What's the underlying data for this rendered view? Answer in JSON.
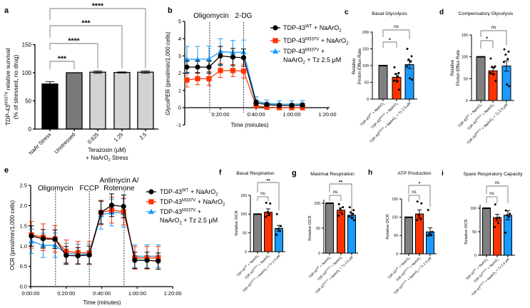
{
  "colors": {
    "wt": "#000000",
    "m337v": "#ff3300",
    "tz": "#1a9bff",
    "reference_bar": "#808080",
    "axis": "#000000"
  },
  "chart_data": [
    {
      "panel": "a",
      "type": "bar",
      "title": "",
      "ylabel": [
        "TDP-43^{M337V} relative survival",
        "(% of stressed, no drug)"
      ],
      "categories": [
        "NaAr Stress",
        "Unstressed",
        "0.625",
        "1.25",
        "2.5"
      ],
      "group_label": [
        "Terazosin (μM)",
        "+ NaArO_{2} Stress"
      ],
      "values": [
        80,
        100,
        101,
        100.5,
        101
      ],
      "errors": [
        4,
        0,
        2,
        1,
        2
      ],
      "points": [
        [],
        [],
        [],
        [],
        []
      ],
      "bar_colors": [
        "#000000",
        "#7a7a7a",
        "#d3d3d3",
        "#d3d3d3",
        "#d3d3d3"
      ],
      "ylim": [
        0,
        150
      ],
      "yticks": [
        0,
        50,
        100,
        150
      ],
      "significance": [
        {
          "from": 0,
          "to": 1,
          "label": "***"
        },
        {
          "from": 0,
          "to": 2,
          "label": "****"
        },
        {
          "from": 0,
          "to": 3,
          "label": "***"
        },
        {
          "from": 0,
          "to": 4,
          "label": "****"
        }
      ]
    },
    {
      "panel": "b",
      "type": "line",
      "title": "",
      "xlabel": "Time (minutes)",
      "ylabel": "GlycoPER (pmol/min/1,000 cells)",
      "ylim": [
        -1,
        5
      ],
      "yticks": [
        -1,
        0,
        1,
        2,
        3,
        4,
        5
      ],
      "xlim_minutes": [
        0,
        80
      ],
      "xticks": [
        {
          "minutes": 20,
          "label": "0:20:00"
        },
        {
          "minutes": 40,
          "label": "0:40:00"
        },
        {
          "minutes": 60,
          "label": "1:00:00"
        },
        {
          "minutes": 80,
          "label": "1:20:00"
        }
      ],
      "injections": [
        {
          "minutes": 14,
          "label": [
            "Oligomycin"
          ]
        },
        {
          "minutes": 33,
          "label": [
            "2-DG"
          ]
        }
      ],
      "legend_position": "top-right",
      "x_minutes": [
        1.2,
        7.2,
        13.6,
        20,
        27,
        33,
        40,
        46,
        53,
        60,
        66
      ],
      "series": [
        {
          "name": [
            "TDP-43^{WT} + NaArO_{2}"
          ],
          "color": "#000000",
          "marker": "circle",
          "values": [
            2.35,
            2.35,
            2.35,
            3.0,
            2.93,
            2.9,
            0.28,
            0.18,
            0.13,
            0.13,
            0.15
          ],
          "errors": [
            0.35,
            0.35,
            0.35,
            0.55,
            0.5,
            0.5,
            0.15,
            0.1,
            0.1,
            0.1,
            0.1
          ]
        },
        {
          "name": [
            "TDP-43^{M337V} + NaArO_{2}"
          ],
          "color": "#ff3300",
          "marker": "square",
          "values": [
            1.6,
            1.68,
            1.68,
            2.15,
            2.15,
            2.12,
            0.1,
            0.02,
            0.0,
            0.0,
            0.0
          ],
          "errors": [
            0.4,
            0.35,
            0.4,
            0.4,
            0.35,
            0.4,
            0.1,
            0.05,
            0.05,
            0.05,
            0.05
          ]
        },
        {
          "name": [
            "TDP-43^{M337V} +",
            "NaArO_{2} + Tz 2.5 μM"
          ],
          "color": "#1a9bff",
          "marker": "triangle",
          "values": [
            2.8,
            2.8,
            2.82,
            3.25,
            3.2,
            3.22,
            0.38,
            0.25,
            0.2,
            0.2,
            0.22
          ],
          "errors": [
            0.75,
            0.75,
            0.75,
            0.75,
            0.7,
            0.7,
            0.25,
            0.2,
            0.2,
            0.2,
            0.2
          ]
        }
      ]
    },
    {
      "panel": "c",
      "type": "bar",
      "title": "Basal Glycolysis",
      "ylabel": [
        "Relative",
        "Proton Efflux Rate"
      ],
      "categories": [
        "TDP-43^{WT} + NaArO_{2}",
        "TDP-43^{M337V} + NaArO_{2}",
        "TDP-43^{M337V} + NaArO_{2} + Tz 2.5 μM"
      ],
      "values": [
        100,
        65,
        103
      ],
      "errors": [
        0,
        10,
        12
      ],
      "points": [
        [],
        [
          95,
          78,
          75,
          68,
          55,
          52,
          28
        ],
        [
          150,
          128,
          118,
          112,
          98,
          62,
          58
        ]
      ],
      "bar_colors": [
        "#808080",
        "#ff3300",
        "#1a9bff"
      ],
      "ylim": [
        0,
        200
      ],
      "yticks": [
        0,
        50,
        100,
        150,
        200
      ],
      "significance": [
        {
          "from": 0,
          "to": 1,
          "label": "*"
        },
        {
          "from": 0,
          "to": 2,
          "label": "ns"
        }
      ]
    },
    {
      "panel": "d",
      "type": "bar",
      "title": "Compensatory Glycolysis",
      "ylabel": [
        "Relative",
        "Proton Efflux Rate"
      ],
      "categories": [
        "TDP-43^{WT} + NaArO_{2}",
        "TDP-43^{M337V} + NaArO_{2}",
        "TDP-43^{M337V} + NaArO_{2} + Tz 2.5 μM"
      ],
      "values": [
        100,
        68,
        79
      ],
      "errors": [
        0,
        8,
        12
      ],
      "points": [
        [],
        [
          96,
          78,
          77,
          75,
          63,
          60,
          45
        ],
        [
          117,
          112,
          105,
          95,
          88,
          37,
          33
        ]
      ],
      "bar_colors": [
        "#808080",
        "#ff3300",
        "#1a9bff"
      ],
      "ylim": [
        0,
        150
      ],
      "yticks": [
        0,
        50,
        100,
        150
      ],
      "significance": [
        {
          "from": 0,
          "to": 1,
          "label": "*"
        },
        {
          "from": 0,
          "to": 2,
          "label": "ns"
        }
      ]
    },
    {
      "panel": "e",
      "type": "line",
      "title": "",
      "xlabel": "Time (minutes)",
      "ylabel": "OCR (pmol/min/1,000 cells)",
      "ylim": [
        0,
        2.5
      ],
      "yticks": [
        0.0,
        0.5,
        1.0,
        1.5,
        2.0,
        2.5
      ],
      "ytick_labels": [
        "0.0",
        "0.5",
        "1.0",
        "1.5",
        "2.0",
        "2.5"
      ],
      "xlim_minutes": [
        0,
        80
      ],
      "xticks": [
        {
          "minutes": 0,
          "label": "0:00:00"
        },
        {
          "minutes": 20,
          "label": "0:20:00"
        },
        {
          "minutes": 40,
          "label": "0:40:00"
        },
        {
          "minutes": 60,
          "label": "1:00:00"
        },
        {
          "minutes": 80,
          "label": "1:20:00"
        }
      ],
      "injections": [
        {
          "minutes": 14,
          "label": [
            "Oligomycin"
          ]
        },
        {
          "minutes": 33,
          "label": [
            "FCCP"
          ]
        },
        {
          "minutes": 52.6,
          "label": [
            "Antimycin A/",
            "Rotenone"
          ]
        }
      ],
      "legend_position": "right",
      "x_minutes": [
        0.4,
        7,
        13.7,
        20,
        26.6,
        33,
        39.6,
        45.6,
        52.3,
        58.6,
        65.5,
        71.8
      ],
      "series": [
        {
          "name": [
            "TDP-43^{WT} + NaArO_{2}"
          ],
          "color": "#000000",
          "marker": "circle",
          "values": [
            1.25,
            1.18,
            1.17,
            0.77,
            0.76,
            0.78,
            1.83,
            2.01,
            1.98,
            0.65,
            0.65,
            0.63
          ],
          "errors": [
            0.25,
            0.23,
            0.23,
            0.22,
            0.2,
            0.22,
            0.28,
            0.28,
            0.28,
            0.2,
            0.2,
            0.2
          ]
        },
        {
          "name": [
            "TDP-43^{M337V} + NaArO_{2}"
          ],
          "color": "#ff3300",
          "marker": "square",
          "values": [
            1.28,
            1.22,
            1.18,
            0.87,
            0.84,
            0.83,
            1.83,
            1.89,
            1.85,
            0.71,
            0.71,
            0.71
          ],
          "errors": [
            0.33,
            0.33,
            0.33,
            0.28,
            0.28,
            0.28,
            0.3,
            0.32,
            0.33,
            0.28,
            0.28,
            0.28
          ]
        },
        {
          "name": [
            "TDP-43^{M337V} +",
            "NaArO_{2} + Tz 2.5 μM"
          ],
          "color": "#1a9bff",
          "marker": "triangle",
          "values": [
            1.12,
            1.02,
            1.02,
            0.82,
            0.8,
            0.8,
            1.77,
            1.83,
            1.82,
            0.75,
            0.75,
            0.75
          ],
          "errors": [
            0.3,
            0.3,
            0.3,
            0.25,
            0.25,
            0.25,
            0.35,
            0.33,
            0.35,
            0.28,
            0.28,
            0.28
          ]
        }
      ]
    },
    {
      "panel": "f",
      "type": "bar",
      "title": "Basal Respiration",
      "ylabel": [
        "Relative OCR"
      ],
      "categories": [
        "TDP-43^{WT} + NaArO_{2}",
        "TDP-43^{M337V} + NaArO_{2}",
        "TDP-43^{M337V} + NaArO_{2} + Tz 2.5 μM"
      ],
      "values": [
        100,
        105,
        62
      ],
      "errors": [
        0,
        9,
        8
      ],
      "points": [
        [],
        [
          130,
          128,
          105,
          100,
          93
        ],
        [
          100,
          68,
          60,
          55,
          45
        ]
      ],
      "bar_colors": [
        "#808080",
        "#ff3300",
        "#1a9bff"
      ],
      "ylim": [
        0,
        150
      ],
      "yticks": [
        0,
        50,
        100,
        150
      ],
      "significance": [
        {
          "from": 0,
          "to": 1,
          "label": "ns"
        },
        {
          "from": 0,
          "to": 2,
          "label": "**"
        }
      ]
    },
    {
      "panel": "g",
      "type": "bar",
      "title": "Maximal Respiration",
      "ylabel": [
        "Relative OCR"
      ],
      "categories": [
        "TDP-43^{WT} + NaArO_{2}",
        "TDP-43^{M337V} + NaArO_{2}",
        "TDP-43^{M337V} + NaArO_{2} + Tz 2.5 μM"
      ],
      "values": [
        100,
        86,
        76
      ],
      "errors": [
        0,
        5,
        4
      ],
      "points": [
        [],
        [
          98,
          92,
          88,
          78,
          75
        ],
        [
          92,
          86,
          82,
          78,
          73,
          70,
          66
        ]
      ],
      "bar_colors": [
        "#808080",
        "#ff3300",
        "#1a9bff"
      ],
      "ylim": [
        0,
        107
      ],
      "yticks": [
        0,
        50,
        100
      ],
      "significance": [
        {
          "from": 0,
          "to": 1,
          "label": "ns"
        },
        {
          "from": 0,
          "to": 2,
          "label": "**"
        }
      ]
    },
    {
      "panel": "h",
      "type": "bar",
      "title": "ATP Production",
      "ylabel": [
        "Relative OCR"
      ],
      "categories": [
        "TDP-43^{WT} + NaArO_{2}",
        "TDP-43^{M337V} + NaArO_{2}",
        "TDP-43^{M337V} + NaArO_{2} + Tz 2.5 μM"
      ],
      "values": [
        100,
        109,
        60
      ],
      "errors": [
        0,
        11,
        11
      ],
      "points": [
        [],
        [
          143,
          138,
          105,
          95,
          92
        ],
        [
          120,
          60,
          55,
          52,
          50
        ]
      ],
      "bar_colors": [
        "#808080",
        "#ff3300",
        "#1a9bff"
      ],
      "ylim": [
        0,
        150
      ],
      "yticks": [
        0,
        50,
        100,
        150
      ],
      "significance": [
        {
          "from": 0,
          "to": 1,
          "label": "ns"
        },
        {
          "from": 0,
          "to": 2,
          "label": "*"
        }
      ]
    },
    {
      "panel": "i",
      "type": "bar",
      "title": "Spare Respiratory Capacity",
      "ylabel": [
        "Relative OCR"
      ],
      "categories": [
        "TDP-43^{WT} + NaArO_{2}",
        "TDP-43^{M337V} + NaArO_{2}",
        "TDP-43^{M337V} + NaArO_{2} + Tz 2.5 μM"
      ],
      "values": [
        100,
        80,
        85
      ],
      "errors": [
        0,
        7,
        10
      ],
      "points": [
        [],
        [
          108,
          80,
          78,
          68,
          60
        ],
        [
          95,
          88,
          85,
          82,
          48
        ]
      ],
      "bar_colors": [
        "#808080",
        "#ff3300",
        "#1a9bff"
      ],
      "ylim": [
        0,
        107
      ],
      "yticks": [
        0,
        50,
        100
      ],
      "significance": [
        {
          "from": 0,
          "to": 1,
          "label": "ns"
        },
        {
          "from": 0,
          "to": 2,
          "label": "ns"
        }
      ]
    }
  ]
}
